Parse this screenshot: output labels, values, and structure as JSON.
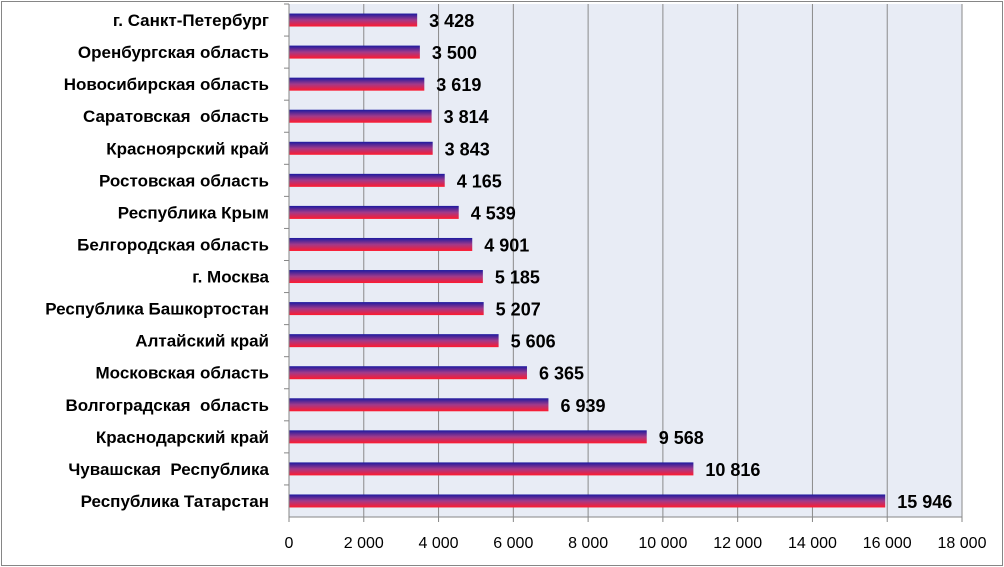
{
  "chart_data": {
    "type": "bar",
    "orientation": "horizontal",
    "categories": [
      "г. Санкт-Петербург",
      "Оренбургская область",
      "Новосибирская область",
      "Саратовская  область",
      "Красноярский край",
      "Ростовская область",
      "Республика Крым",
      "Белгородская область",
      "г. Москва",
      "Республика Башкортостан",
      "Алтайский край",
      "Московская область",
      "Волгоградская  область",
      "Краснодарский край",
      "Чувашская  Республика",
      "Республика Татарстан"
    ],
    "values": [
      3428,
      3500,
      3619,
      3814,
      3843,
      4165,
      4539,
      4901,
      5185,
      5207,
      5606,
      6365,
      6939,
      9568,
      10816,
      15946
    ],
    "value_labels": [
      "3 428",
      "3 500",
      "3 619",
      "3 814",
      "3 843",
      "4 165",
      "4 539",
      "4 901",
      "5 185",
      "5 207",
      "5 606",
      "6 365",
      "6 939",
      "9 568",
      "10 816",
      "15 946"
    ],
    "xlim": [
      0,
      18000
    ],
    "x_ticks": [
      0,
      2000,
      4000,
      6000,
      8000,
      10000,
      12000,
      14000,
      16000,
      18000
    ],
    "x_tick_labels": [
      "0",
      "2 000",
      "4 000",
      "6 000",
      "8 000",
      "10 000",
      "12 000",
      "14 000",
      "16 000",
      "18 000"
    ],
    "grid": true,
    "colors": {
      "bar_top": "#1b1aa0",
      "bar_mid": "#a23a8a",
      "bar_bottom": "#ff1a2e",
      "plot_background": "#e8ecf5",
      "gridline": "#8a8a8a"
    },
    "title": "",
    "xlabel": "",
    "ylabel": ""
  }
}
